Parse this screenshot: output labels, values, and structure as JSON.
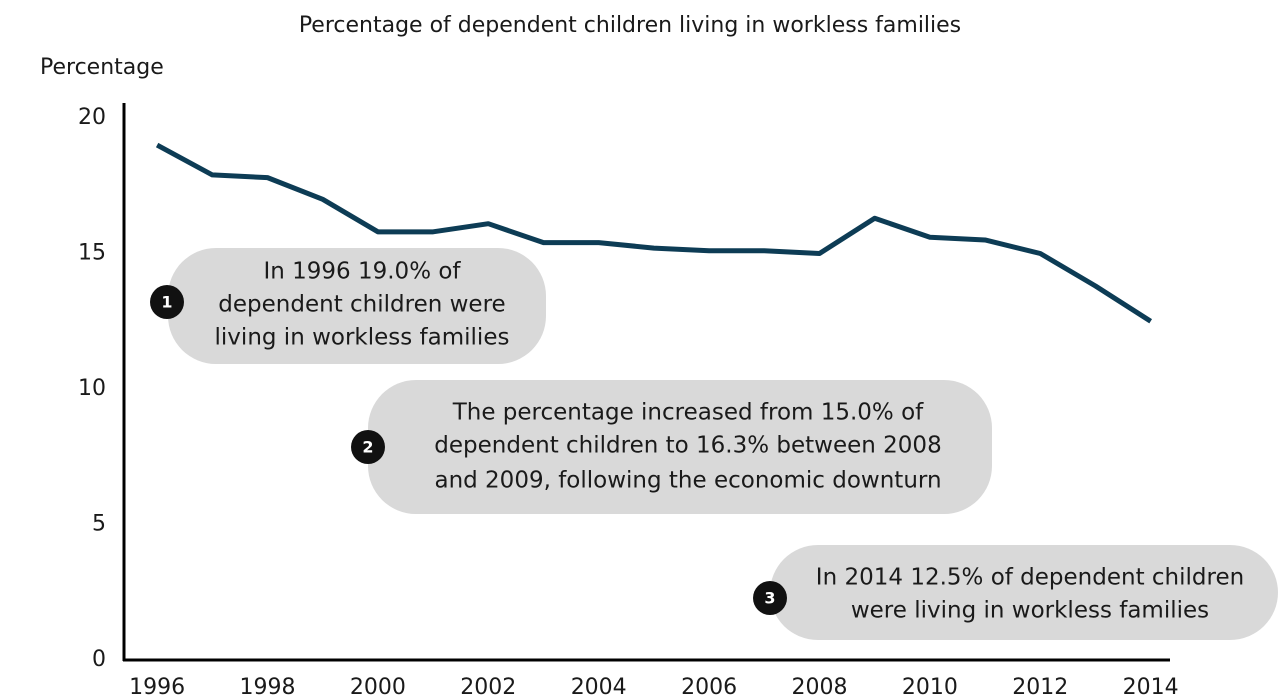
{
  "chart_data": {
    "type": "line",
    "title": "Percentage of dependent children living in workless families",
    "y_label": "Percentage",
    "x": [
      1996,
      1997,
      1998,
      1999,
      2000,
      2001,
      2002,
      2003,
      2004,
      2005,
      2006,
      2007,
      2008,
      2009,
      2010,
      2011,
      2012,
      2013,
      2014
    ],
    "series": [
      {
        "name": "Percentage",
        "color": "#0d3c55",
        "values": [
          19.0,
          17.9,
          17.8,
          17.0,
          15.8,
          15.8,
          16.1,
          15.4,
          15.4,
          15.2,
          15.1,
          15.1,
          15.0,
          16.3,
          15.6,
          15.5,
          15.0,
          13.8,
          12.5
        ]
      }
    ],
    "xlim": [
      1995.4,
      2014.35
    ],
    "xticks": [
      1996,
      1998,
      2000,
      2002,
      2004,
      2006,
      2008,
      2010,
      2012,
      2014
    ],
    "ylim": [
      0,
      20
    ],
    "yticks": [
      0,
      5,
      10,
      15,
      20
    ],
    "annotations": [
      {
        "label": "1",
        "lines": [
          "In 1996 19.0% of",
          "dependent children were",
          "living in workless families"
        ]
      },
      {
        "label": "2",
        "lines": [
          "The percentage increased from 15.0% of",
          "dependent children to 16.3% between 2008",
          "and 2009, following the economic downturn"
        ]
      },
      {
        "label": "3",
        "lines": [
          "In 2014 12.5% of dependent children",
          "were living in workless families"
        ]
      }
    ]
  }
}
